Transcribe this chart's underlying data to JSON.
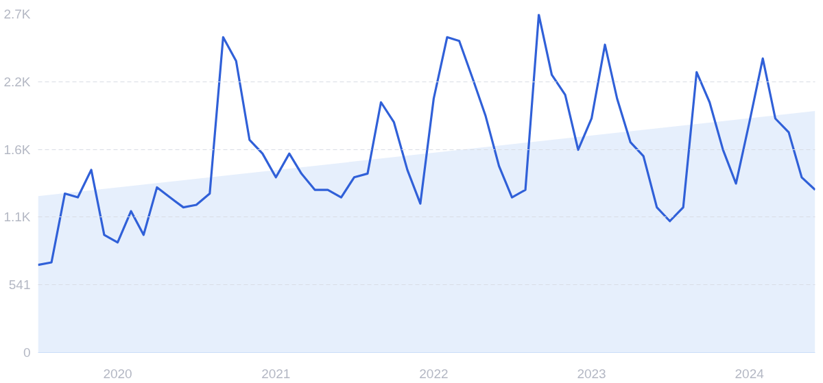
{
  "chart_data": {
    "type": "line",
    "x": [
      "2019-07",
      "2019-08",
      "2019-09",
      "2019-10",
      "2019-11",
      "2019-12",
      "2020-01",
      "2020-02",
      "2020-03",
      "2020-04",
      "2020-05",
      "2020-06",
      "2020-07",
      "2020-08",
      "2020-09",
      "2020-10",
      "2020-11",
      "2020-12",
      "2021-01",
      "2021-02",
      "2021-03",
      "2021-04",
      "2021-05",
      "2021-06",
      "2021-07",
      "2021-08",
      "2021-09",
      "2021-10",
      "2021-11",
      "2021-12",
      "2022-01",
      "2022-02",
      "2022-03",
      "2022-04",
      "2022-05",
      "2022-06",
      "2022-07",
      "2022-08",
      "2022-09",
      "2022-10",
      "2022-11",
      "2022-12",
      "2023-01",
      "2023-02",
      "2023-03",
      "2023-04",
      "2023-05",
      "2023-06",
      "2023-07",
      "2023-08",
      "2023-09",
      "2023-10",
      "2023-11",
      "2023-12",
      "2024-01",
      "2024-02",
      "2024-03",
      "2024-04",
      "2024-05",
      "2024-06"
    ],
    "series": [
      {
        "type": "area",
        "color": "#e3edfc",
        "x": [
          "2019-07",
          "2024-06"
        ],
        "values": [
          1250,
          1930
        ]
      },
      {
        "color": "#3060d8",
        "values": [
          700,
          720,
          1270,
          1240,
          1460,
          940,
          880,
          1130,
          940,
          1320,
          1240,
          1160,
          1180,
          1270,
          2520,
          2330,
          1700,
          1590,
          1400,
          1590,
          1430,
          1300,
          1300,
          1240,
          1400,
          1430,
          2000,
          1840,
          1460,
          1190,
          2030,
          2520,
          2490,
          2190,
          1890,
          1490,
          1240,
          1300,
          2700,
          2220,
          2060,
          1620,
          1870,
          2460,
          2030,
          1680,
          1570,
          1160,
          1050,
          1160,
          2240,
          2000,
          1620,
          1350,
          1840,
          2350,
          1870,
          1760,
          1400,
          1300
        ]
      }
    ],
    "xlim": [
      "2019-07",
      "2024-06"
    ],
    "xticks": [
      "2020",
      "2021",
      "2022",
      "2023",
      "2024"
    ],
    "ylim": [
      0,
      2705
    ],
    "yticks": [
      0,
      541,
      {
        "value": 1082,
        "label": "1.1K"
      },
      {
        "value": 1623,
        "label": "1.6K"
      },
      {
        "value": 2164,
        "label": "2.2K"
      },
      {
        "value": 2705,
        "label": "2.7K"
      }
    ],
    "grid": "y"
  }
}
